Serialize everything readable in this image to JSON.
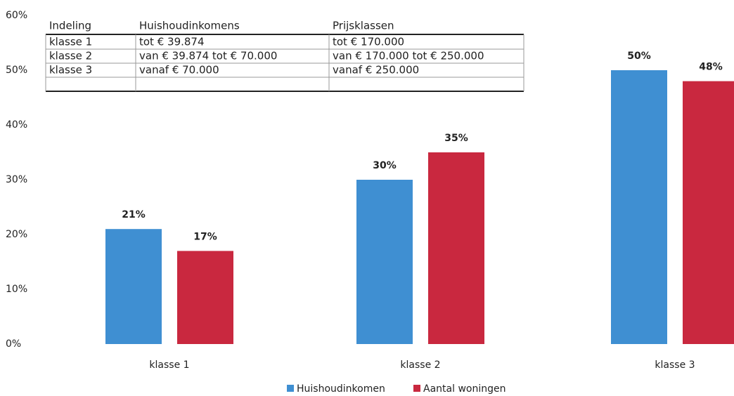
{
  "chart_data": {
    "type": "bar",
    "categories": [
      "klasse 1",
      "klasse 2",
      "klasse 3"
    ],
    "series": [
      {
        "name": "Huishoudinkomen",
        "color": "#3f8fd2",
        "values": [
          21,
          30,
          50
        ],
        "value_labels": [
          "21%",
          "30%",
          "50%"
        ]
      },
      {
        "name": "Aantal woningen",
        "color": "#c9283f",
        "values": [
          17,
          35,
          48
        ],
        "value_labels": [
          "17%",
          "35%",
          "48%"
        ]
      }
    ],
    "ylim": [
      0,
      60
    ],
    "yticks": [
      {
        "value": 0,
        "label": "0%"
      },
      {
        "value": 10,
        "label": "10%"
      },
      {
        "value": 20,
        "label": "20%"
      },
      {
        "value": 30,
        "label": "30%"
      },
      {
        "value": 40,
        "label": "40%"
      },
      {
        "value": 50,
        "label": "50%"
      },
      {
        "value": 60,
        "label": "60%"
      }
    ],
    "grid": false,
    "legend": "bottom"
  },
  "table": {
    "header": [
      "Indeling",
      "Huishoudinkomens",
      "Prijsklassen"
    ],
    "rows": [
      [
        "klasse 1",
        "tot € 39.874",
        "tot € 170.000"
      ],
      [
        "klasse 2",
        "van € 39.874 tot € 70.000",
        "van € 170.000 tot € 250.000"
      ],
      [
        "klasse 3",
        "vanaf € 70.000",
        "vanaf € 250.000"
      ]
    ]
  }
}
